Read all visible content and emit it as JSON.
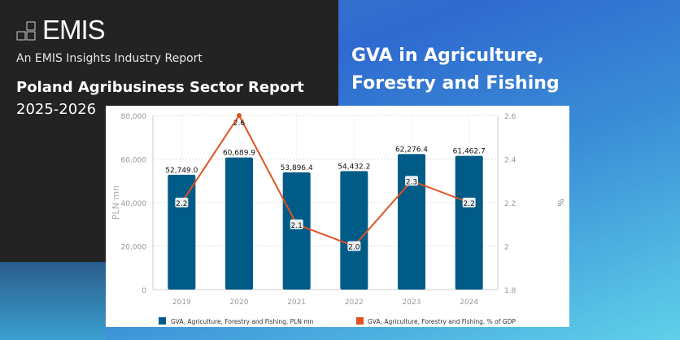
{
  "brand": {
    "logo_text": "EMIS",
    "tagline": "An EMIS Insights Industry Report",
    "report_title": "Poland Agribusiness Sector Report",
    "report_years": "2025-2026"
  },
  "headline": {
    "line1": "GVA in Agriculture,",
    "line2": "Forestry and Fishing"
  },
  "colors": {
    "bar": "#005b87",
    "line": "#e0531f",
    "dark_panel": "#232323"
  },
  "chart_data": {
    "type": "bar+line",
    "categories": [
      "2019",
      "2020",
      "2021",
      "2022",
      "2023",
      "2024"
    ],
    "series": [
      {
        "name": "GVA, Agriculture, Forestry and Fishing, PLN mn",
        "type": "bar",
        "axis": "left",
        "values": [
          52749.0,
          60689.9,
          53896.4,
          54432.2,
          62276.4,
          61462.7
        ],
        "labels": [
          "52,749.0",
          "60,689.9",
          "53,896.4",
          "54,432.2",
          "62,276.4",
          "61,462.7"
        ]
      },
      {
        "name": "GVA, Agriculture, Forestry and Fishing, % of GDP",
        "type": "line",
        "axis": "right",
        "values": [
          2.2,
          2.6,
          2.1,
          2.0,
          2.3,
          2.2
        ],
        "labels": [
          "2.2",
          "2.6",
          "2.1",
          "2.0",
          "2.3",
          "2.2"
        ]
      }
    ],
    "ylabel": "PLN mn",
    "y2label": "%",
    "ylim": [
      0,
      80000
    ],
    "y2lim": [
      1.8,
      2.6
    ],
    "yticks": [
      "0",
      "20,000",
      "40,000",
      "60,000",
      "80,000"
    ],
    "y2ticks": [
      "1.8",
      "2",
      "2.2",
      "2.4",
      "2.6"
    ],
    "grid": true,
    "legend": "bottom"
  }
}
